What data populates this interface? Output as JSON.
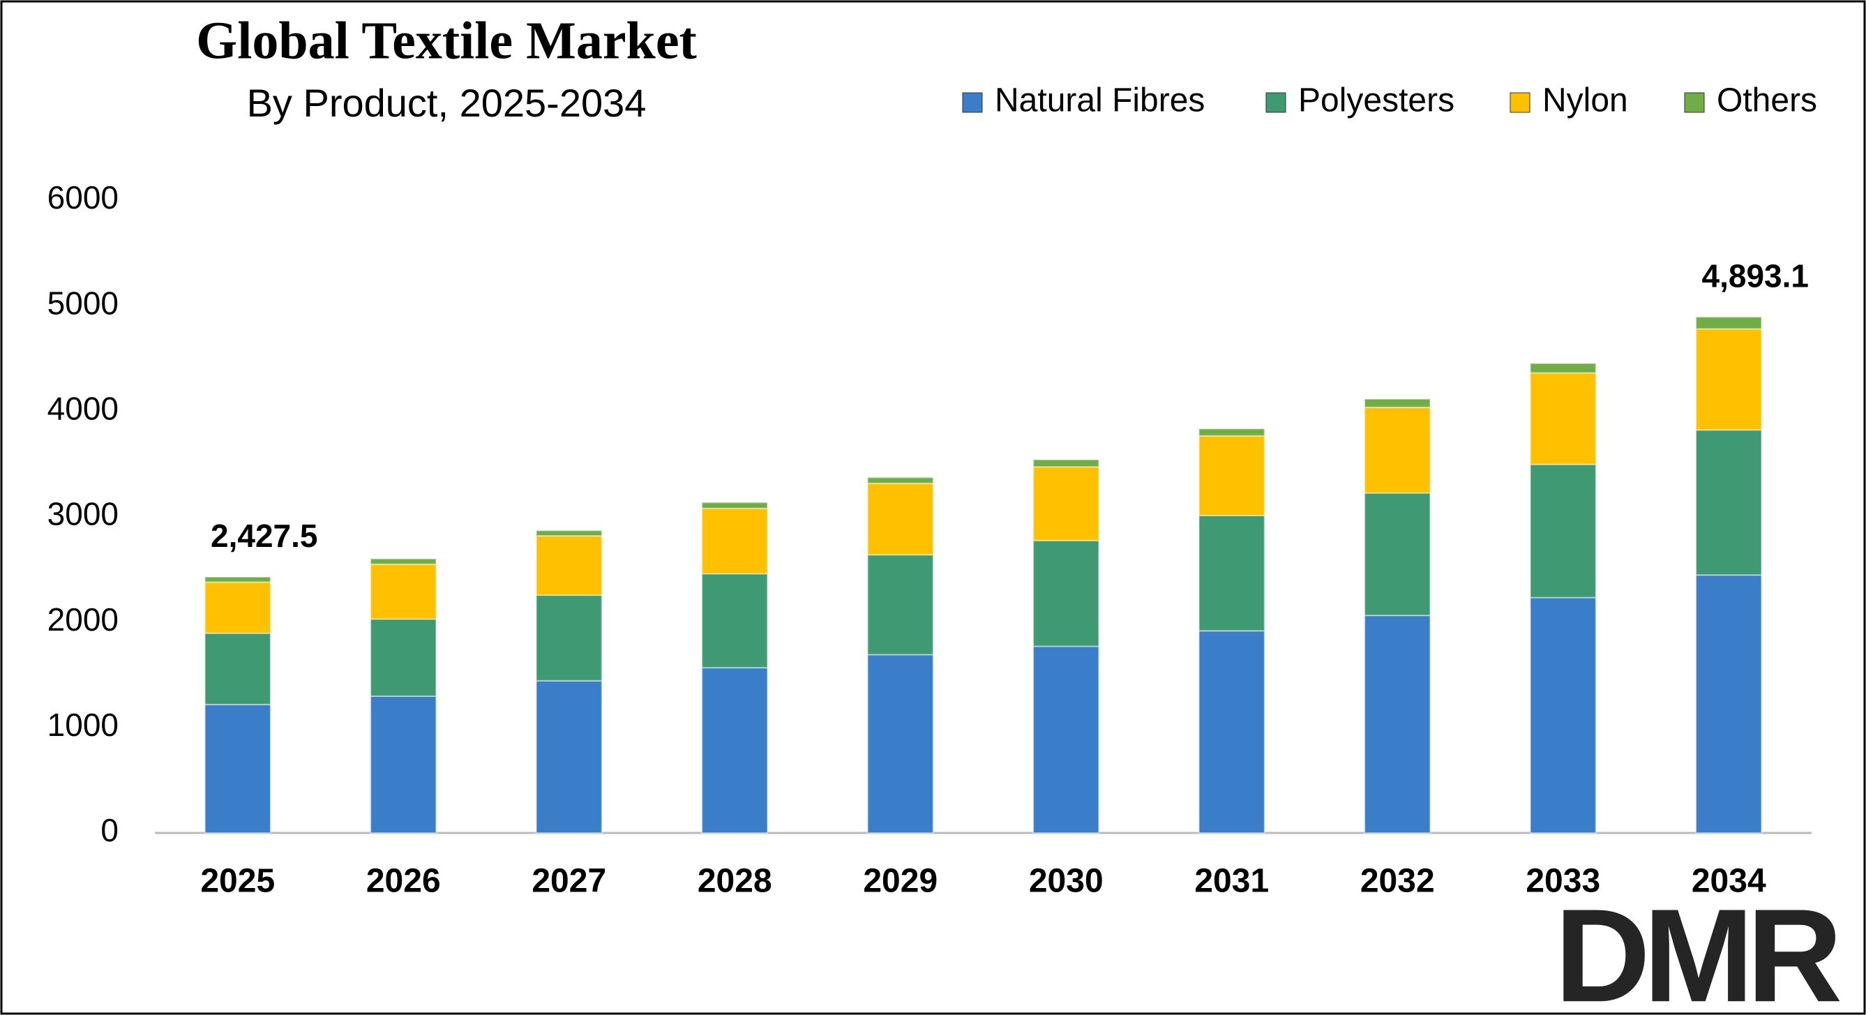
{
  "chart_data": {
    "type": "stacked_bar",
    "title": "Global Textile Market",
    "subtitle": "By Product, 2025-2034",
    "categories": [
      "2025",
      "2026",
      "2027",
      "2028",
      "2029",
      "2030",
      "2031",
      "2032",
      "2033",
      "2034"
    ],
    "series": [
      {
        "name": "Natural Fibres",
        "color": "#3a7dc9",
        "values": [
          1218,
          1297,
          1443,
          1567,
          1691,
          1770,
          1917,
          2063,
          2232,
          2446
        ]
      },
      {
        "name": "Polyesters",
        "color": "#3f9a73",
        "values": [
          676,
          732,
          812,
          891,
          947,
          1003,
          1093,
          1161,
          1263,
          1376
        ]
      },
      {
        "name": "Nylon",
        "color": "#ffc000",
        "values": [
          485,
          519,
          563,
          620,
          677,
          699,
          756,
          812,
          868,
          958
        ]
      },
      {
        "name": "Others",
        "color": "#70ad47",
        "values": [
          48.5,
          52,
          50,
          56,
          56,
          68,
          67,
          79,
          90,
          113.1
        ]
      }
    ],
    "annotations": [
      {
        "category": "2025",
        "value": 2427.5,
        "label": "2,427.5"
      },
      {
        "category": "2034",
        "value": 4893.1,
        "label": "4,893.1"
      }
    ],
    "ylim": [
      0,
      6000
    ],
    "yticks": [
      0,
      1000,
      2000,
      3000,
      4000,
      5000,
      6000
    ],
    "grid": false,
    "legend": "top-right",
    "logo": "DMR"
  }
}
